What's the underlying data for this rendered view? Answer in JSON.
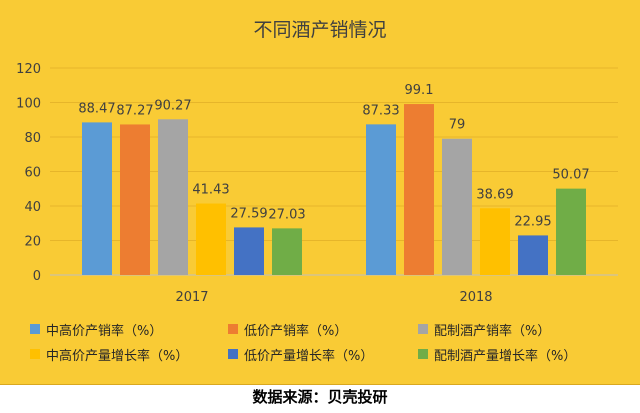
{
  "chart_data": {
    "type": "bar",
    "title": "不同酒产销情况",
    "categories": [
      "2017",
      "2018"
    ],
    "ylim": [
      0,
      120
    ],
    "yticks": [
      0,
      20,
      40,
      60,
      80,
      100,
      120
    ],
    "grid": true,
    "legend_position": "bottom",
    "series": [
      {
        "name": "中高价产销率（%）",
        "color": "#5b9bd5",
        "values": [
          88.47,
          87.33
        ],
        "labels": [
          "88.47",
          "87.33"
        ]
      },
      {
        "name": "低价产销率（%）",
        "color": "#ed7d31",
        "values": [
          87.27,
          99.1
        ],
        "labels": [
          "87.27",
          "99.1"
        ]
      },
      {
        "name": "配制酒产销率（%）",
        "color": "#a5a5a5",
        "values": [
          90.27,
          79
        ],
        "labels": [
          "90.27",
          "79"
        ]
      },
      {
        "name": "中高价产量增长率（%）",
        "color": "#ffc000",
        "values": [
          41.43,
          38.69
        ],
        "labels": [
          "41.43",
          "38.69"
        ]
      },
      {
        "name": "低价产量增长率（%）",
        "color": "#4472c4",
        "values": [
          27.59,
          22.95
        ],
        "labels": [
          "27.59",
          "22.95"
        ]
      },
      {
        "name": "配制酒产量增长率（%）",
        "color": "#70ad47",
        "values": [
          27.03,
          50.07
        ],
        "labels": [
          "27.03",
          "50.07"
        ]
      }
    ]
  },
  "source": "数据来源：贝壳投研"
}
